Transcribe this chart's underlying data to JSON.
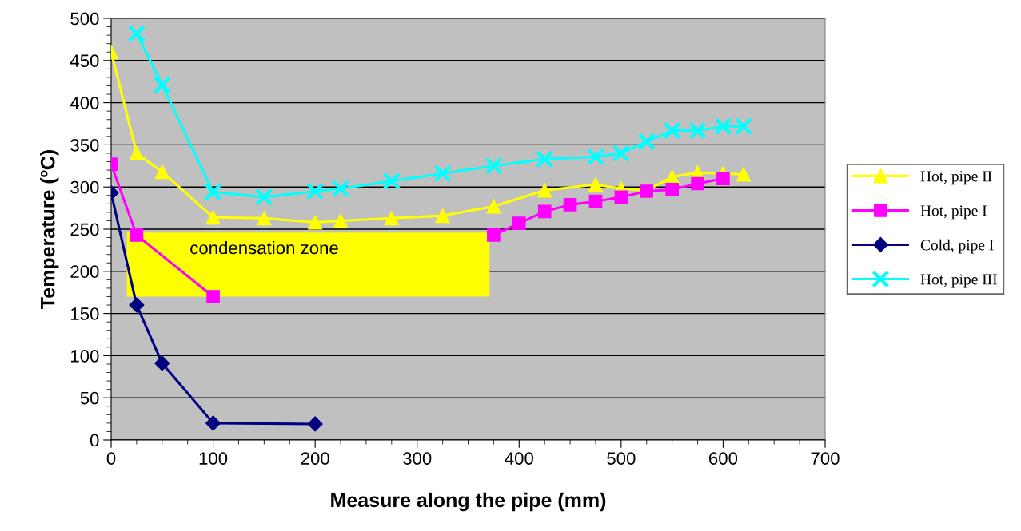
{
  "chart_data": {
    "type": "line",
    "xlabel": "Measure along the pipe (mm)",
    "ylabel": "Temperature (ºC)",
    "xlim": [
      0,
      700
    ],
    "xticks": [
      0,
      100,
      200,
      300,
      400,
      500,
      600,
      700
    ],
    "ylim": [
      0,
      500
    ],
    "yticks": [
      0,
      50,
      100,
      150,
      200,
      250,
      300,
      350,
      400,
      450,
      500
    ],
    "grid": "y",
    "legend": "right",
    "annotations": [
      "condensation zone"
    ],
    "series": [
      {
        "name": "Hot, pipe II",
        "color": "#ffff00",
        "marker": "triangle",
        "x": [
          0,
          25,
          50,
          100,
          150,
          200,
          225,
          275,
          325,
          375,
          425,
          475,
          500,
          525,
          550,
          575,
          600,
          620
        ],
        "values": [
          460,
          340,
          318,
          264,
          263,
          258,
          260,
          263,
          266,
          277,
          296,
          303,
          298,
          296,
          312,
          317,
          316,
          315
        ]
      },
      {
        "name": "Hot, pipe I",
        "color": "#ff00ff",
        "marker": "square",
        "x": [
          0,
          25,
          100,
          125,
          250,
          375,
          400,
          425,
          450,
          475,
          500,
          525,
          550,
          575,
          600
        ],
        "values": [
          327,
          243,
          170,
          null,
          null,
          243,
          257,
          271,
          279,
          283,
          288,
          295,
          297,
          304,
          310
        ]
      },
      {
        "name": "Cold, pipe I",
        "color": "#000080",
        "marker": "diamond",
        "x": [
          0,
          25,
          50,
          100,
          200
        ],
        "values": [
          293,
          160,
          91,
          20,
          19
        ]
      },
      {
        "name": "Hot, pipe III",
        "color": "#00ffff",
        "marker": "cross",
        "x": [
          25,
          50,
          100,
          150,
          200,
          225,
          275,
          325,
          375,
          425,
          475,
          500,
          525,
          550,
          575,
          600,
          620
        ],
        "values": [
          482,
          421,
          294,
          288,
          295,
          298,
          307,
          316,
          325,
          333,
          336,
          340,
          354,
          367,
          367,
          372,
          372
        ]
      }
    ]
  }
}
